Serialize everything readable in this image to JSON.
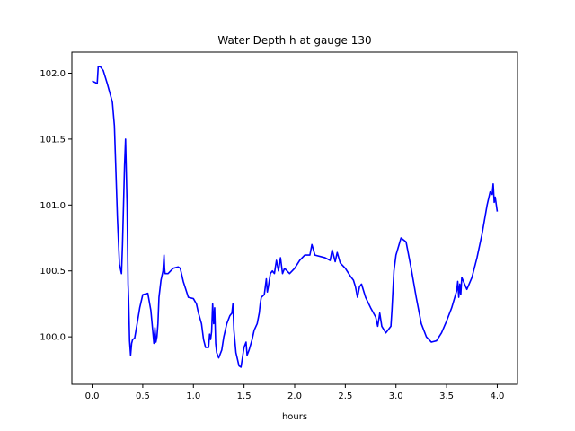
{
  "chart_data": {
    "type": "line",
    "title": "Water Depth h at gauge 130",
    "xlabel": "hours",
    "ylabel": "",
    "xlim": [
      -0.2,
      4.2
    ],
    "ylim": [
      99.64,
      102.16
    ],
    "xticks": [
      0.0,
      0.5,
      1.0,
      1.5,
      2.0,
      2.5,
      3.0,
      3.5,
      4.0
    ],
    "xtick_labels": [
      "0.0",
      "0.5",
      "1.0",
      "1.5",
      "2.0",
      "2.5",
      "3.0",
      "3.5",
      "4.0"
    ],
    "yticks": [
      100.0,
      100.5,
      101.0,
      101.5,
      102.0
    ],
    "ytick_labels": [
      "100.0",
      "100.5",
      "101.0",
      "101.5",
      "102.0"
    ],
    "grid": false,
    "legend": "none",
    "series": [
      {
        "color": "#0000ff",
        "x": [
          0.0,
          0.03,
          0.05,
          0.06,
          0.08,
          0.11,
          0.15,
          0.2,
          0.22,
          0.25,
          0.27,
          0.29,
          0.3,
          0.32,
          0.33,
          0.345,
          0.355,
          0.36,
          0.37,
          0.38,
          0.39,
          0.4,
          0.42,
          0.44,
          0.47,
          0.5,
          0.55,
          0.58,
          0.61,
          0.62,
          0.63,
          0.64,
          0.65,
          0.66,
          0.68,
          0.7,
          0.71,
          0.715,
          0.72,
          0.75,
          0.8,
          0.85,
          0.87,
          0.9,
          0.95,
          1.0,
          1.03,
          1.05,
          1.08,
          1.1,
          1.12,
          1.15,
          1.16,
          1.17,
          1.18,
          1.19,
          1.2,
          1.21,
          1.22,
          1.23,
          1.25,
          1.28,
          1.3,
          1.33,
          1.36,
          1.38,
          1.39,
          1.4,
          1.42,
          1.45,
          1.47,
          1.5,
          1.52,
          1.53,
          1.55,
          1.58,
          1.6,
          1.63,
          1.65,
          1.66,
          1.67,
          1.7,
          1.72,
          1.73,
          1.74,
          1.76,
          1.78,
          1.8,
          1.82,
          1.84,
          1.86,
          1.88,
          1.9,
          1.95,
          2.0,
          2.05,
          2.1,
          2.15,
          2.17,
          2.2,
          2.3,
          2.35,
          2.37,
          2.4,
          2.42,
          2.45,
          2.5,
          2.55,
          2.58,
          2.6,
          2.62,
          2.64,
          2.66,
          2.7,
          2.75,
          2.8,
          2.82,
          2.84,
          2.86,
          2.9,
          2.95,
          2.96,
          2.98,
          3.0,
          3.05,
          3.1,
          3.15,
          3.2,
          3.25,
          3.3,
          3.35,
          3.4,
          3.45,
          3.5,
          3.55,
          3.6,
          3.61,
          3.62,
          3.63,
          3.64,
          3.65,
          3.7,
          3.75,
          3.8,
          3.85,
          3.9,
          3.93,
          3.95,
          3.96,
          3.97,
          3.98,
          4.0
        ],
        "y": [
          101.94,
          101.93,
          101.92,
          102.05,
          102.05,
          102.02,
          101.92,
          101.78,
          101.6,
          100.9,
          100.55,
          100.48,
          100.7,
          101.3,
          101.5,
          101.0,
          100.4,
          100.3,
          99.97,
          99.86,
          99.95,
          99.98,
          99.99,
          100.08,
          100.22,
          100.32,
          100.33,
          100.2,
          99.95,
          100.07,
          99.96,
          100.0,
          100.1,
          100.3,
          100.43,
          100.5,
          100.62,
          100.52,
          100.48,
          100.48,
          100.52,
          100.53,
          100.52,
          100.42,
          100.3,
          100.29,
          100.25,
          100.18,
          100.1,
          99.98,
          99.92,
          99.92,
          100.02,
          99.98,
          100.04,
          100.25,
          100.1,
          100.22,
          99.95,
          99.88,
          99.84,
          99.9,
          100.0,
          100.1,
          100.16,
          100.18,
          100.25,
          100.05,
          99.88,
          99.78,
          99.77,
          99.92,
          99.96,
          99.86,
          99.9,
          99.98,
          100.05,
          100.1,
          100.18,
          100.25,
          100.3,
          100.32,
          100.44,
          100.34,
          100.38,
          100.48,
          100.5,
          100.48,
          100.58,
          100.5,
          100.6,
          100.48,
          100.52,
          100.48,
          100.52,
          100.58,
          100.62,
          100.62,
          100.7,
          100.62,
          100.6,
          100.58,
          100.66,
          100.57,
          100.64,
          100.56,
          100.52,
          100.46,
          100.43,
          100.38,
          100.3,
          100.38,
          100.4,
          100.3,
          100.22,
          100.15,
          100.08,
          100.18,
          100.08,
          100.03,
          100.08,
          100.2,
          100.5,
          100.62,
          100.75,
          100.72,
          100.52,
          100.3,
          100.1,
          100.0,
          99.96,
          99.97,
          100.03,
          100.12,
          100.22,
          100.35,
          100.42,
          100.3,
          100.4,
          100.32,
          100.45,
          100.36,
          100.45,
          100.6,
          100.78,
          101.0,
          101.1,
          101.08,
          101.16,
          101.02,
          101.06,
          100.95
        ]
      }
    ]
  }
}
